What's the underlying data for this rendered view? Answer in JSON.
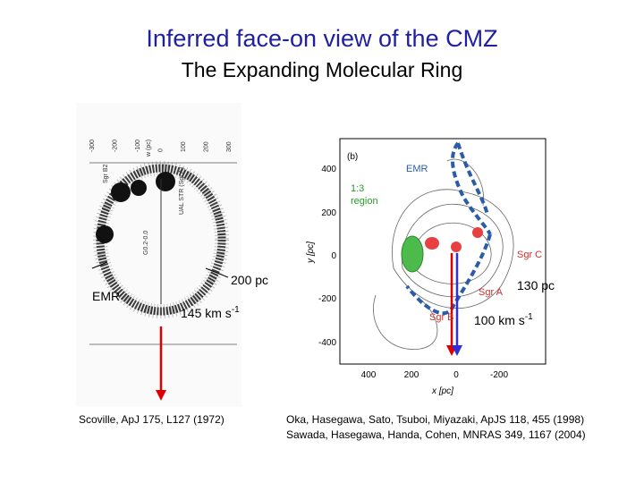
{
  "title": "Inferred face-on view of the CMZ",
  "subtitle": "The Expanding Molecular Ring",
  "left_figure": {
    "axis_ticks": [
      "-300",
      "-200",
      "-100",
      "0",
      "100",
      "200",
      "300"
    ],
    "annotations": [
      "Sgr B2",
      "w (pc)",
      "UAL STR (Sgr A)",
      "G0.2-0.0"
    ],
    "ring_label": "EMR",
    "size_label": "200 pc",
    "velocity": {
      "text": "145 km s",
      "exponent": "-1"
    },
    "caption": "Scoville, ApJ 175, L127 (1972)"
  },
  "right_figure": {
    "panel": "(b)",
    "xlabel": "x [pc]",
    "ylabel": "y [pc]",
    "xticks": [
      "400",
      "200",
      "0",
      "-200"
    ],
    "yticks": [
      "400",
      "200",
      "0",
      "-200",
      "-400"
    ],
    "regions": {
      "emr": "EMR",
      "ratio": "1:3",
      "ratio_word": "region",
      "sgr_c": "Sgr C",
      "sgr_a": "Sgr A",
      "sgr_b": "Sgr B"
    },
    "size_label": "130 pc",
    "velocity": {
      "text": "100 km s",
      "exponent": "-1"
    },
    "caption": [
      "Oka, Hasegawa, Sato, Tsuboi, Miyazaki, ApJS 118, 455 (1998)",
      "Sawada, Hasegawa, Handa, Cohen, MNRAS 349, 1167 (2004)"
    ]
  }
}
